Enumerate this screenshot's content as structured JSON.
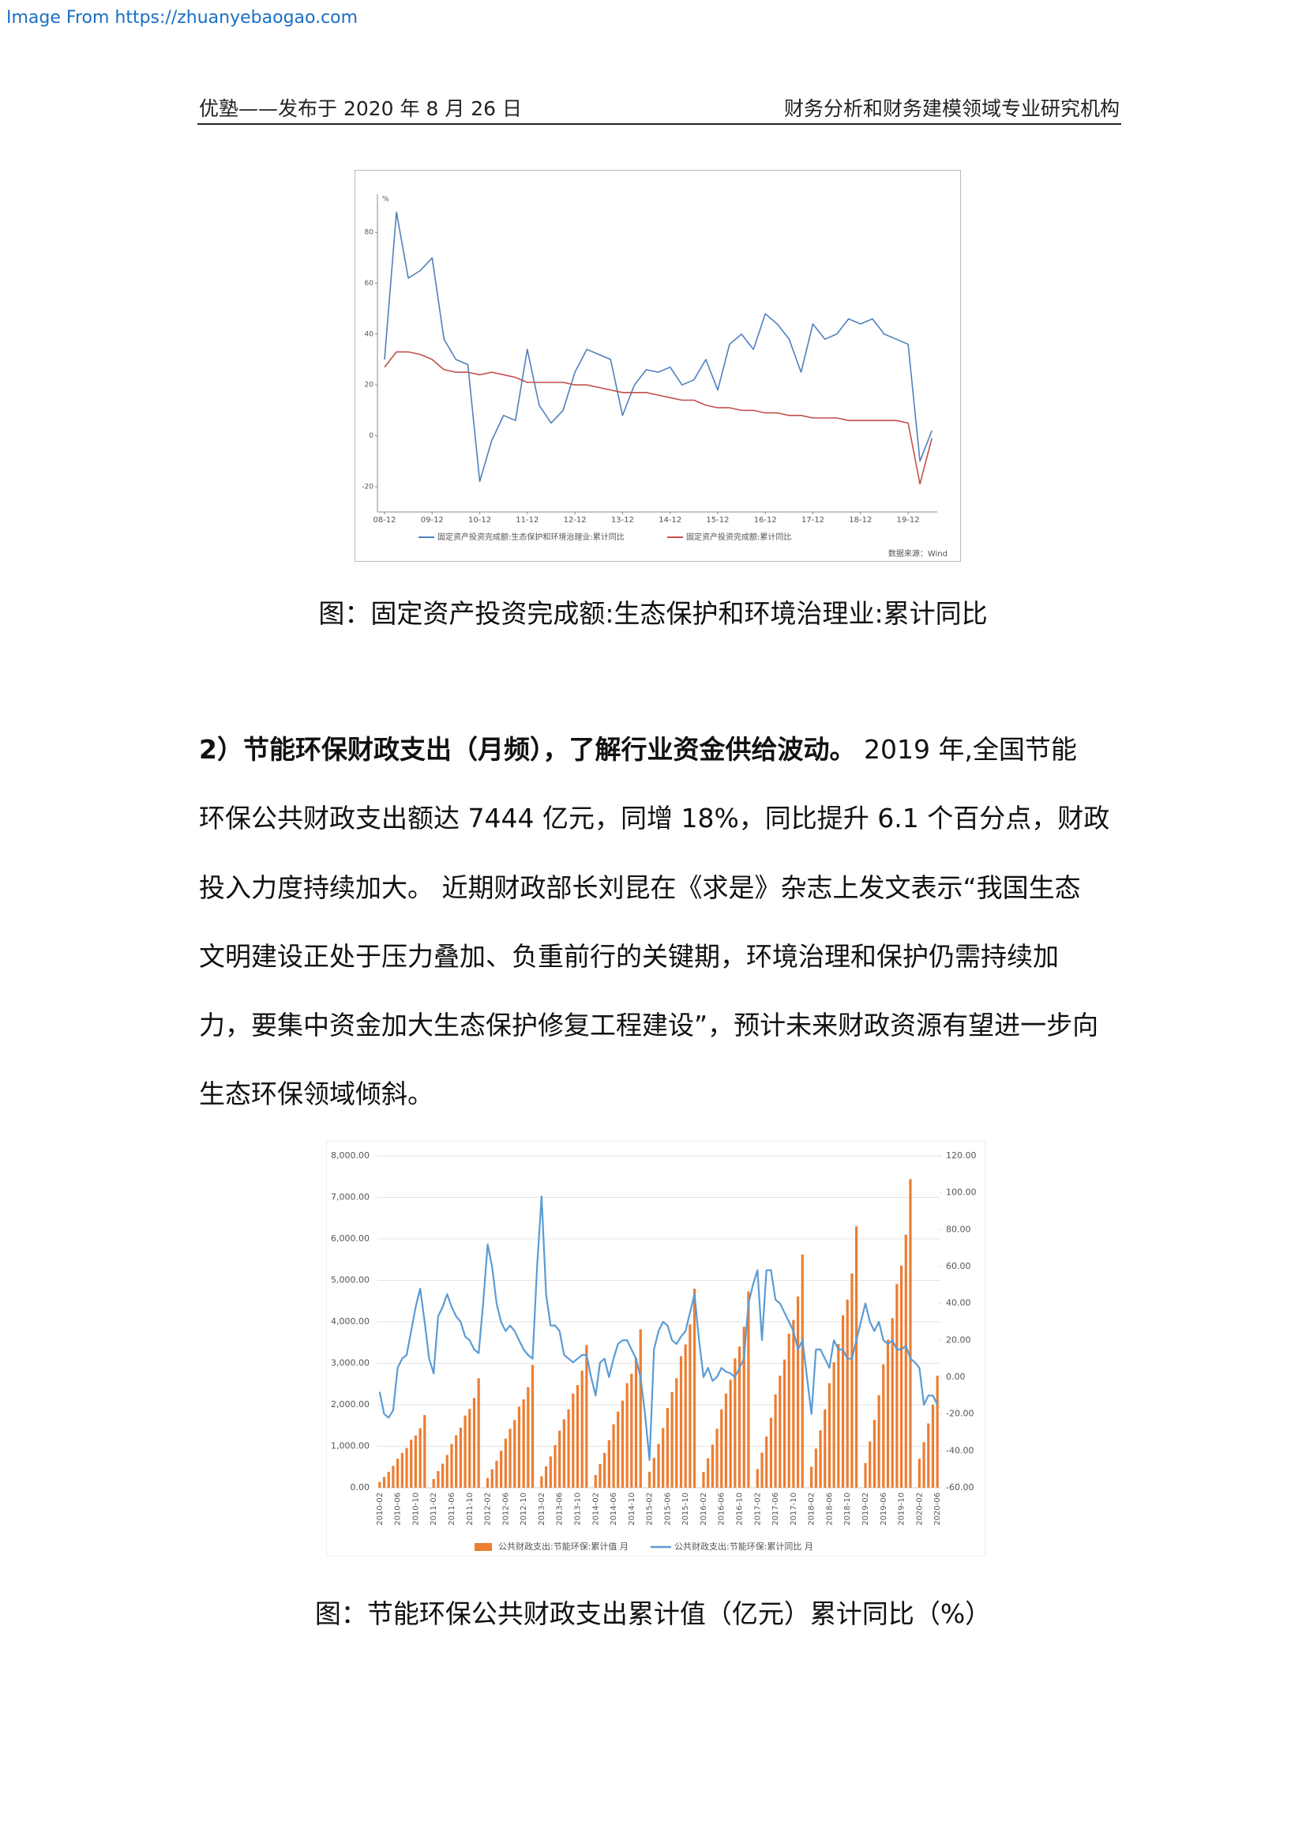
{
  "watermark": "Image From https://zhuanyebaogao.com",
  "header": {
    "left": "优塾——发布于 2020 年 8 月 26 日",
    "right": "财务分析和财务建模领域专业研究机构"
  },
  "captions": [
    "图：固定资产投资完成额:生态保护和环境治理业:累计同比",
    "图：节能环保公共财政支出累计值（亿元）累计同比（%）"
  ],
  "paragraph": {
    "bold": "2）节能环保财政支出（月频），了解行业资金供给波动。",
    "lines": [
      " 2019 年,全国节能",
      "环保公共财政支出额达 7444 亿元，同增 18%，同比提升 6.1 个百分点，财政",
      "投入力度持续加大。 近期财政部长刘昆在《求是》杂志上发文表示“我国生态",
      "文明建设正处于压力叠加、负重前行的关键期，环境治理和保护仍需持续加",
      "力，要集中资金加大生态保护修复工程建设”，预计未来财政资源有望进一步向",
      "生态环保领域倾斜。"
    ]
  },
  "chart_data": [
    {
      "type": "line",
      "y_unit": "%",
      "categories": [
        "08-12",
        null,
        null,
        null,
        "09-12",
        null,
        null,
        null,
        "10-12",
        null,
        null,
        null,
        "11-12",
        null,
        null,
        null,
        "12-12",
        null,
        null,
        null,
        "13-12",
        null,
        null,
        null,
        "14-12",
        null,
        null,
        null,
        "15-12",
        null,
        null,
        null,
        "16-12",
        null,
        null,
        null,
        "17-12",
        null,
        null,
        null,
        "18-12",
        null,
        null,
        null,
        "19-12",
        null,
        null
      ],
      "series": [
        {
          "name": "固定资产投资完成额:生态保护和环境治理业:累计同比",
          "color": "#4f81bd",
          "values": [
            30,
            88,
            62,
            65,
            70,
            38,
            30,
            28,
            -18,
            -2,
            8,
            6,
            34,
            12,
            5,
            10,
            25,
            34,
            32,
            30,
            8,
            20,
            26,
            25,
            27,
            20,
            22,
            30,
            18,
            36,
            40,
            34,
            48,
            44,
            38,
            25,
            44,
            38,
            40,
            46,
            44,
            46,
            40,
            38,
            36,
            -10,
            2
          ]
        },
        {
          "name": "固定资产投资完成额:累计同比",
          "color": "#c0504d",
          "values": [
            27,
            33,
            33,
            32,
            30,
            26,
            25,
            25,
            24,
            25,
            24,
            23,
            21,
            21,
            21,
            21,
            20,
            20,
            19,
            18,
            17,
            17,
            17,
            16,
            15,
            14,
            14,
            12,
            11,
            11,
            10,
            10,
            9,
            9,
            8,
            8,
            7,
            7,
            7,
            6,
            6,
            6,
            6,
            6,
            5,
            -19,
            -1
          ]
        }
      ],
      "ylim": [
        -30,
        95
      ],
      "yticks": [
        -20,
        0,
        20,
        40,
        60,
        80
      ],
      "source": "数据来源：Wind"
    },
    {
      "type": "bar-line",
      "categories": [
        "2010-02",
        null,
        null,
        null,
        "2010-06",
        null,
        null,
        null,
        "2010-10",
        null,
        null,
        null,
        "2011-02",
        null,
        null,
        null,
        "2011-06",
        null,
        null,
        null,
        "2011-10",
        null,
        null,
        null,
        "2012-02",
        null,
        null,
        null,
        "2012-06",
        null,
        null,
        null,
        "2012-10",
        null,
        null,
        null,
        "2013-02",
        null,
        null,
        null,
        "2013-06",
        null,
        null,
        null,
        "2013-10",
        null,
        null,
        null,
        "2014-02",
        null,
        null,
        null,
        "2014-06",
        null,
        null,
        null,
        "2014-10",
        null,
        null,
        null,
        "2015-02",
        null,
        null,
        null,
        "2015-06",
        null,
        null,
        null,
        "2015-10",
        null,
        null,
        null,
        "2016-02",
        null,
        null,
        null,
        "2016-06",
        null,
        null,
        null,
        "2016-10",
        null,
        null,
        null,
        "2017-02",
        null,
        null,
        null,
        "2017-06",
        null,
        null,
        null,
        "2017-10",
        null,
        null,
        null,
        "2018-02",
        null,
        null,
        null,
        "2018-06",
        null,
        null,
        null,
        "2018-10",
        null,
        null,
        null,
        "2019-02",
        null,
        null,
        null,
        "2019-06",
        null,
        null,
        null,
        "2019-10",
        null,
        null,
        null,
        "2020-02",
        null,
        null,
        null,
        "2020-06"
      ],
      "series": [
        {
          "name": "公共财政支出:节能环保:累计值 月",
          "type": "bar",
          "color": "#ed7d31",
          "values": [
            140,
            260,
            385,
            525,
            700,
            840,
            960,
            1155,
            1260,
            1435,
            1750,
            null,
            210,
            400,
            580,
            790,
            1055,
            1265,
            1450,
            1740,
            1900,
            2165,
            2640,
            null,
            235,
            445,
            650,
            890,
            1185,
            1420,
            1630,
            1955,
            2130,
            2425,
            2960,
            null,
            275,
            515,
            755,
            1030,
            1375,
            1650,
            1890,
            2270,
            2475,
            2820,
            3440,
            null,
            305,
            575,
            840,
            1145,
            1530,
            1835,
            2100,
            2520,
            2750,
            3130,
            3820,
            null,
            385,
            720,
            1055,
            1440,
            1920,
            2305,
            2640,
            3170,
            3455,
            3935,
            4800,
            null,
            380,
            710,
            1040,
            1420,
            1890,
            2270,
            2600,
            3120,
            3405,
            3880,
            4730,
            null,
            450,
            845,
            1235,
            1685,
            2250,
            2700,
            3090,
            3710,
            4045,
            4610,
            5620,
            null,
            505,
            945,
            1385,
            1890,
            2520,
            3025,
            3465,
            4160,
            4535,
            5165,
            6300,
            null,
            595,
            1115,
            1635,
            2230,
            2975,
            3570,
            4090,
            4910,
            5355,
            6100,
            7440,
            null,
            700,
            1100,
            1550,
            2000,
            2700
          ]
        },
        {
          "name": "公共财政支出:节能环保:累计同比 月",
          "type": "line",
          "axis": "y2",
          "color": "#5b9bd5",
          "values": [
            -8,
            -20,
            -22,
            -18,
            5,
            10,
            12,
            25,
            38,
            48,
            30,
            10,
            2,
            33,
            38,
            45,
            38,
            33,
            30,
            22,
            20,
            15,
            13,
            40,
            72,
            60,
            40,
            30,
            25,
            28,
            25,
            20,
            15,
            12,
            10,
            60,
            98,
            45,
            28,
            28,
            25,
            12,
            10,
            8,
            10,
            12,
            12,
            0,
            -10,
            8,
            10,
            0,
            10,
            18,
            20,
            20,
            15,
            10,
            0,
            -20,
            -45,
            15,
            25,
            30,
            28,
            20,
            18,
            22,
            25,
            35,
            45,
            20,
            0,
            5,
            -2,
            0,
            5,
            3,
            2,
            0,
            5,
            10,
            40,
            50,
            58,
            20,
            58,
            58,
            42,
            40,
            35,
            30,
            25,
            15,
            20,
            0,
            -20,
            15,
            15,
            10,
            5,
            20,
            15,
            15,
            10,
            10,
            20,
            30,
            40,
            30,
            25,
            30,
            20,
            18,
            20,
            15,
            15,
            17,
            10,
            8,
            5,
            -15,
            -10,
            -10,
            -15
          ]
        }
      ],
      "ylim": [
        0,
        8000
      ],
      "yticks": [
        {
          "value": 0,
          "label": "0.00"
        },
        {
          "value": 1000,
          "label": "1,000.00"
        },
        {
          "value": 2000,
          "label": "2,000.00"
        },
        {
          "value": 3000,
          "label": "3,000.00"
        },
        {
          "value": 4000,
          "label": "4,000.00"
        },
        {
          "value": 5000,
          "label": "5,000.00"
        },
        {
          "value": 6000,
          "label": "6,000.00"
        },
        {
          "value": 7000,
          "label": "7,000.00"
        },
        {
          "value": 8000,
          "label": "8,000.00"
        }
      ],
      "y2lim": [
        -60,
        120
      ],
      "y2ticks": [
        {
          "value": -60,
          "label": "-60.00"
        },
        {
          "value": -40,
          "label": "-40.00"
        },
        {
          "value": -20,
          "label": "-20.00"
        },
        {
          "value": 0,
          "label": "0.00"
        },
        {
          "value": 20,
          "label": "20.00"
        },
        {
          "value": 40,
          "label": "40.00"
        },
        {
          "value": 60,
          "label": "60.00"
        },
        {
          "value": 80,
          "label": "80.00"
        },
        {
          "value": 100,
          "label": "100.00"
        },
        {
          "value": 120,
          "label": "120.00"
        }
      ],
      "grid": true
    }
  ]
}
